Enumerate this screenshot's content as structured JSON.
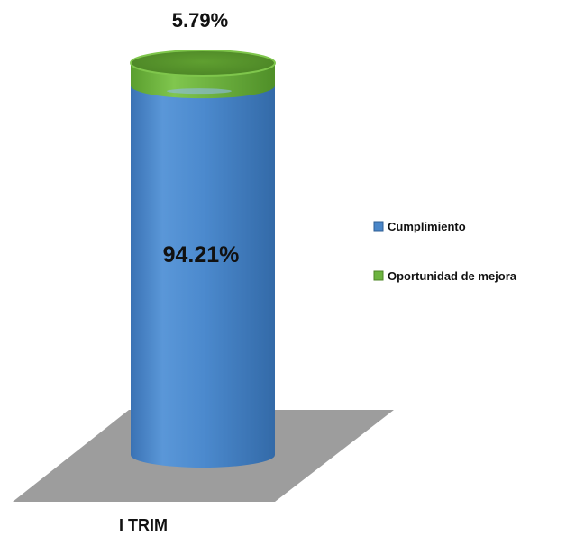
{
  "chart_data": {
    "type": "bar",
    "subtype": "stacked-100-cylinder-3d",
    "categories": [
      "I TRIM"
    ],
    "series": [
      {
        "name": "Cumplimiento",
        "values": [
          94.21
        ],
        "color": "#4a86c8",
        "label": "94.21%"
      },
      {
        "name": "Oportunidad de mejora",
        "values": [
          5.79
        ],
        "color": "#6cb33f",
        "label": "5.79%"
      }
    ],
    "ylim": [
      0,
      100
    ],
    "legend": "right",
    "grid": false,
    "floor_color": "#9d9d9d"
  }
}
